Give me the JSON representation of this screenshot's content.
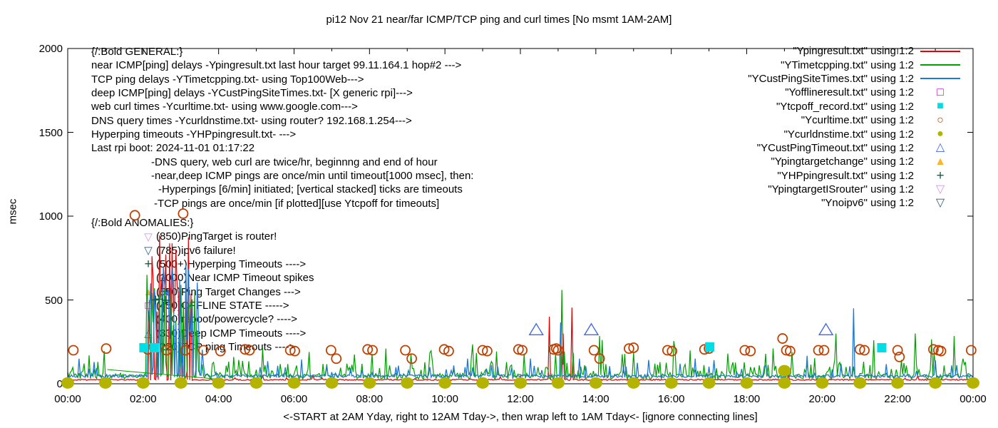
{
  "title": "pi12 Nov 21  near/far ICMP/TCP ping and curl times [No msmt 1AM-2AM]",
  "axes": {
    "ylabel": "msec",
    "xlabel": "<-START at 2AM Yday, right to 12AM Tday->, then wrap left to 1AM Tday<- [ignore connecting lines]",
    "ylim": [
      0,
      2000
    ],
    "xlim_hours": [
      0,
      24
    ],
    "y_ticks": [
      {
        "v": 0,
        "label": "0"
      },
      {
        "v": 500,
        "label": "500"
      },
      {
        "v": 1000,
        "label": "1000"
      },
      {
        "v": 1500,
        "label": "1500"
      },
      {
        "v": 2000,
        "label": "2000"
      }
    ],
    "x_ticks": [
      {
        "h": 0,
        "label": "00:00"
      },
      {
        "h": 2,
        "label": "02:00"
      },
      {
        "h": 4,
        "label": "04:00"
      },
      {
        "h": 6,
        "label": "06:00"
      },
      {
        "h": 8,
        "label": "08:00"
      },
      {
        "h": 10,
        "label": "10:00"
      },
      {
        "h": 12,
        "label": "12:00"
      },
      {
        "h": 14,
        "label": "14:00"
      },
      {
        "h": 16,
        "label": "16:00"
      },
      {
        "h": 18,
        "label": "18:00"
      },
      {
        "h": 20,
        "label": "20:00"
      },
      {
        "h": 22,
        "label": "22:00"
      },
      {
        "h": 24,
        "label": "00:00"
      }
    ],
    "x_minor_every_hours": 1,
    "grid": "off",
    "legend_position": "top-right"
  },
  "colors": {
    "red": "#e60000",
    "green": "#00a000",
    "blue": "#1f78d4",
    "magenta": "#bf00bf",
    "cyan": "#00dde4",
    "brown": "#c04000",
    "olive": "#b3b300",
    "royal": "#4169e1",
    "orange": "#ffb429",
    "darkgreen": "#15604a",
    "violet": "#cc99e8",
    "steel": "#335d7d"
  },
  "legend": [
    {
      "label": "\"Ypingresult.txt\" using 1:2",
      "sample": "line",
      "color": "#e60000"
    },
    {
      "label": "\"YTimetcpping.txt\" using 1:2",
      "sample": "line",
      "color": "#00a000"
    },
    {
      "label": "\"YCustPingSiteTimes.txt\" using 1:2",
      "sample": "line",
      "color": "#1f78d4"
    },
    {
      "label": "\"Yofflineresult.txt\" using 1:2",
      "sample": "square-open",
      "color": "#bf00bf"
    },
    {
      "label": "\"Ytcpoff_record.txt\" using 1:2",
      "sample": "square-filled",
      "color": "#00dde4"
    },
    {
      "label": "\"Ycurltime.txt\" using 1:2",
      "sample": "circle-open",
      "color": "#c04000"
    },
    {
      "label": "\"Ycurldnstime.txt\" using 1:2",
      "sample": "circle-filled",
      "color": "#b3b300"
    },
    {
      "label": "\"YCustPingTimeout.txt\" using 1:2",
      "sample": "tri-up-open",
      "color": "#4169e1"
    },
    {
      "label": "\"Ypingtargetchange\" using 1:2",
      "sample": "tri-up-filled",
      "color": "#ffb429"
    },
    {
      "label": "\"YHPpingresult.txt\" using 1:2",
      "sample": "plus",
      "color": "#15604a"
    },
    {
      "label": "\"YpingtargetISrouter\" using 1:2",
      "sample": "tri-down-open",
      "color": "#cc99e8"
    },
    {
      "label": "\"Ynoipv6\" using 1:2",
      "sample": "tri-down-open",
      "color": "#335d7d"
    }
  ],
  "general_lines": [
    {
      "text": "{/:Bold GENERAL:}",
      "indent": 0
    },
    {
      "text": "near ICMP[ping] delays -Ypingresult.txt last hour target 99.11.164.1 hop#2 --->",
      "indent": 0
    },
    {
      "text": "TCP ping delays -YTimetcpping.txt- using Top100Web--->",
      "indent": 0
    },
    {
      "text": "deep ICMP[ping] delays -YCustPingSiteTimes.txt- [X generic rpi]--->",
      "indent": 0
    },
    {
      "text": "web curl times -Ycurltime.txt- using www.google.com--->",
      "indent": 0
    },
    {
      "text": "DNS query times -Ycurldnstime.txt- using router? 192.168.1.254--->",
      "indent": 0
    },
    {
      "text": "Hyperping timeouts -YHPpingresult.txt- --->",
      "indent": 0
    },
    {
      "text": "Last rpi boot: 2024-11-01 01:17:22",
      "indent": 0
    },
    {
      "text": "-DNS query, web curl are twice/hr, beginnng and end of hour",
      "indent": 84
    },
    {
      "text": "-near,deep ICMP pings are once/min until timeout[1000 msec], then:",
      "indent": 84
    },
    {
      "text": "-Hyperpings [6/min] initiated; [vertical stacked] ticks are timeouts",
      "indent": 94
    },
    {
      "text": "-TCP pings are once/min [if plotted][use Ytcpoff for timeouts]",
      "indent": 88
    }
  ],
  "anomalies": {
    "header": "{/:Bold ANOMALIES:}",
    "rows": [
      {
        "marker": "tri-down-open",
        "color": "#cc99e8",
        "text": "(850)PingTarget is router!"
      },
      {
        "marker": "tri-down-open",
        "color": "#335d7d",
        "text": "(785)ipv6 failure!"
      },
      {
        "marker": "plus",
        "color": "#15604a",
        "text": "(500+)Hyperping Timeouts ---->"
      },
      {
        "marker": null,
        "color": "",
        "text": "(1000)Near ICMP Timeout spikes"
      },
      {
        "marker": "tri-up-filled",
        "color": "#ffb429",
        "text": "(550)Ping Target Changes --->"
      },
      {
        "marker": "square-open",
        "color": "#bf00bf",
        "text": "(450)OFFLINE STATE ----->"
      },
      {
        "marker": null,
        "color": "",
        "text": "(400)reboot/powercycle? ---->"
      },
      {
        "marker": "tri-up-open",
        "color": "#4169e1",
        "text": "(330)Deep ICMP Timeouts ---->"
      },
      {
        "marker": "square-filled",
        "color": "#00dde4",
        "text": "(220)TCP ping Timeouts ---->"
      }
    ]
  },
  "chart_data": {
    "type": "line",
    "x_unit": "hours_0_to_24",
    "no_measurement_gap_hours": [
      1.05,
      1.97
    ],
    "series": [
      {
        "name": "Ypingresult",
        "color": "#e60000",
        "width": 1.2,
        "seed": 11,
        "base": 24,
        "jitter": 4,
        "p1": 0.02,
        "a1": 30,
        "p2": 0.002,
        "a2": 60,
        "gap": [
          1.05,
          1.97
        ],
        "events": [
          [
            2.45,
            1000
          ],
          [
            2.28,
            620
          ],
          [
            2.85,
            580
          ],
          [
            12.76,
            400
          ],
          [
            13.13,
            300
          ],
          [
            13.38,
            455
          ]
        ],
        "bursts": [
          {
            "start": 2.05,
            "end": 3.45,
            "count": 22,
            "hmin": 250,
            "hmax": 950
          }
        ]
      },
      {
        "name": "YTimetcpping",
        "color": "#00a000",
        "width": 1.2,
        "seed": 22,
        "base": 45,
        "jitter": 18,
        "p1": 0.3,
        "a1": 90,
        "p2": 0.05,
        "a2": 160,
        "gap": [
          1.05,
          1.97
        ],
        "events": [
          [
            3.08,
            690
          ],
          [
            13.1,
            560
          ],
          [
            0.55,
            170
          ],
          [
            4.4,
            160
          ],
          [
            5.15,
            215
          ],
          [
            6.4,
            190
          ],
          [
            7.6,
            175
          ],
          [
            9.6,
            185
          ],
          [
            10.72,
            235
          ],
          [
            12.1,
            180
          ],
          [
            14.1,
            285
          ],
          [
            16.08,
            255
          ],
          [
            17.5,
            180
          ],
          [
            19.2,
            190
          ],
          [
            20.35,
            300
          ],
          [
            21.35,
            260
          ],
          [
            22.45,
            300
          ],
          [
            22.9,
            265
          ],
          [
            23.5,
            285
          ]
        ],
        "bursts": [
          {
            "start": 2.05,
            "end": 3.45,
            "count": 26,
            "hmin": 300,
            "hmax": 700
          }
        ]
      },
      {
        "name": "YCustPingSiteTimes",
        "color": "#1f78d4",
        "width": 1.3,
        "seed": 33,
        "base": 46,
        "jitter": 8,
        "p1": 0.1,
        "a1": 70,
        "p2": 0.02,
        "a2": 130,
        "gap": [
          1.05,
          1.97
        ],
        "events": [
          [
            2.3,
            640
          ],
          [
            13.08,
            365
          ],
          [
            20.82,
            450
          ],
          [
            0.3,
            150
          ],
          [
            0.7,
            130
          ],
          [
            5.3,
            135
          ],
          [
            6.2,
            145
          ],
          [
            10.6,
            150
          ],
          [
            13.55,
            150
          ],
          [
            23.0,
            140
          ]
        ],
        "bursts": [
          {
            "start": 2.07,
            "end": 3.5,
            "count": 38,
            "hmin": 250,
            "hmax": 720
          }
        ]
      }
    ],
    "extra_segments": [
      {
        "name": "connecting-line-artifact",
        "color": "#00a000",
        "width": 1,
        "from": [
          1.05,
          85
        ],
        "to": [
          3.95,
          28
        ]
      }
    ],
    "markers": [
      {
        "name": "Ycurltime",
        "type": "circle-open",
        "color": "#c04000",
        "size": 6.5,
        "points": [
          [
            0.15,
            200
          ],
          [
            1.02,
            210
          ],
          [
            1.78,
            1005
          ],
          [
            2.12,
            205
          ],
          [
            2.62,
            200
          ],
          [
            3.06,
            1015
          ],
          [
            3.12,
            200
          ],
          [
            3.6,
            200
          ],
          [
            4.05,
            195
          ],
          [
            4.7,
            205
          ],
          [
            4.82,
            200
          ],
          [
            5.9,
            200
          ],
          [
            6.02,
            195
          ],
          [
            6.98,
            200
          ],
          [
            7.12,
            150
          ],
          [
            7.95,
            205
          ],
          [
            8.08,
            200
          ],
          [
            8.95,
            200
          ],
          [
            9.12,
            150
          ],
          [
            9.98,
            205
          ],
          [
            10.1,
            195
          ],
          [
            11.0,
            200
          ],
          [
            11.12,
            195
          ],
          [
            11.95,
            205
          ],
          [
            12.05,
            200
          ],
          [
            12.88,
            205
          ],
          [
            12.95,
            210
          ],
          [
            13.0,
            200
          ],
          [
            13.95,
            200
          ],
          [
            14.1,
            150
          ],
          [
            14.88,
            210
          ],
          [
            15.0,
            215
          ],
          [
            15.9,
            200
          ],
          [
            16.02,
            195
          ],
          [
            16.88,
            205
          ],
          [
            17.0,
            210
          ],
          [
            17.95,
            200
          ],
          [
            18.1,
            195
          ],
          [
            18.95,
            270
          ],
          [
            19.05,
            200
          ],
          [
            19.15,
            195
          ],
          [
            19.9,
            200
          ],
          [
            20.05,
            200
          ],
          [
            21.0,
            205
          ],
          [
            21.12,
            200
          ],
          [
            22.0,
            200
          ],
          [
            22.05,
            160
          ],
          [
            22.95,
            205
          ],
          [
            23.08,
            200
          ],
          [
            23.15,
            195
          ],
          [
            23.95,
            200
          ]
        ]
      },
      {
        "name": "Ycurldnstime",
        "type": "ellipse-filled",
        "color": "#b3b300",
        "size": 8,
        "points": [
          [
            0,
            5
          ],
          [
            1,
            5
          ],
          [
            2,
            5
          ],
          [
            3,
            5
          ],
          [
            4,
            5
          ],
          [
            5,
            5
          ],
          [
            6,
            5
          ],
          [
            7,
            5
          ],
          [
            8,
            5
          ],
          [
            9,
            5
          ],
          [
            10,
            5
          ],
          [
            11,
            5
          ],
          [
            12,
            5
          ],
          [
            13,
            5
          ],
          [
            14,
            5
          ],
          [
            15,
            5
          ],
          [
            16,
            5
          ],
          [
            17,
            5
          ],
          [
            18,
            5
          ],
          [
            19,
            5
          ],
          [
            20,
            5
          ],
          [
            21,
            5
          ],
          [
            22,
            5
          ],
          [
            23,
            5
          ],
          [
            24,
            5
          ],
          [
            19.0,
            78
          ]
        ]
      },
      {
        "name": "Ytcpoff_record",
        "type": "square-filled",
        "color": "#00dde4",
        "size": 13,
        "points": [
          [
            2.02,
            215
          ],
          [
            2.3,
            215
          ],
          [
            17.02,
            220
          ],
          [
            21.58,
            215
          ]
        ]
      },
      {
        "name": "YCustPingTimeout",
        "type": "tri-up-open",
        "color": "#4169e1",
        "size": 9,
        "points": [
          [
            12.42,
            320
          ],
          [
            13.88,
            320
          ],
          [
            20.1,
            320
          ]
        ]
      },
      {
        "name": "YHPpingresult",
        "type": "plus",
        "color": "#15604a",
        "size": 6,
        "points": [
          [
            2.33,
            500
          ],
          [
            2.42,
            505
          ],
          [
            2.6,
            498
          ]
        ]
      }
    ]
  }
}
